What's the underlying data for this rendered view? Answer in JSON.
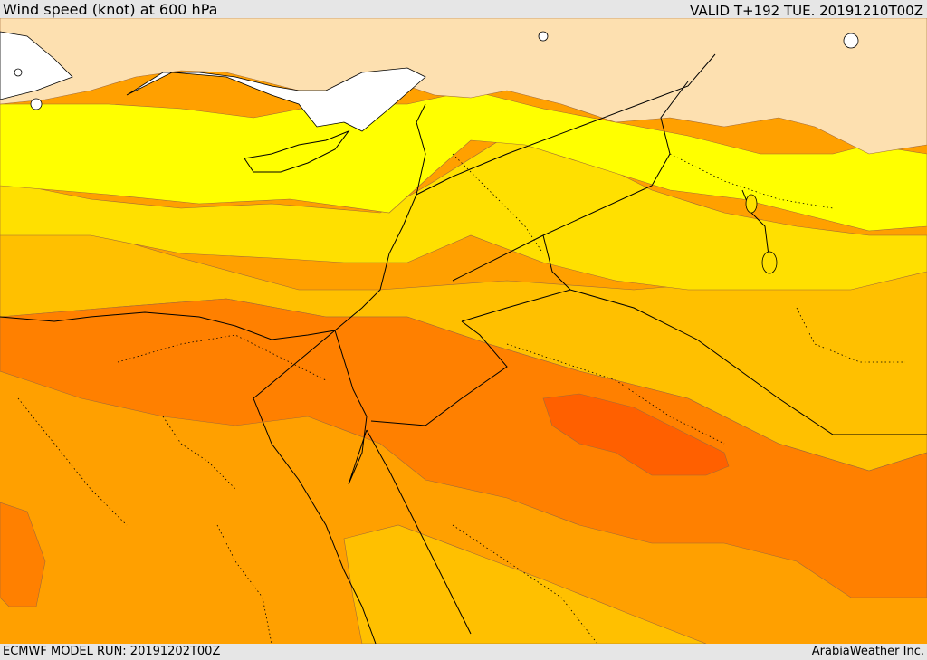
{
  "header": {
    "title": "Wind speed (knot) at 600 hPa",
    "valid": "VALID T+192 TUE. 20191210T00Z"
  },
  "footer": {
    "model_run": "ECMWF MODEL RUN: 20191202T00Z",
    "credit": "ArabiaWeather Inc."
  },
  "colors": {
    "land_low": "#fde0b0",
    "sea": "#ffffff",
    "band_yellow": "#ffff00",
    "band_gold": "#ffe000",
    "band_amber": "#ffc000",
    "band_orange": "#ffa000",
    "band_dark_orange": "#ff8000",
    "band_deep_orange": "#ff6000",
    "frame": "#e6e6e6"
  }
}
